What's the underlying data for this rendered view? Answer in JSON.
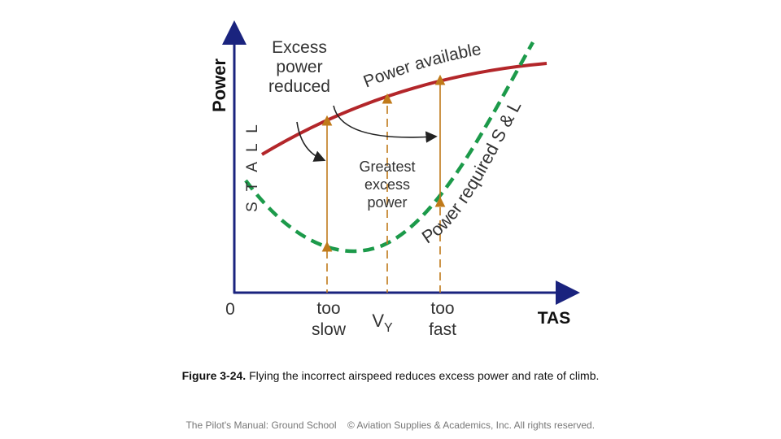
{
  "axes": {
    "y_label": "Power",
    "x_label": "TAS",
    "origin": "0",
    "stall": "S T A L L"
  },
  "curves": {
    "power_available": "Power available",
    "power_required": "Power required S & L"
  },
  "annotations": {
    "excess_reduced": [
      "Excess",
      "power",
      "reduced"
    ],
    "greatest": [
      "Greatest",
      "excess",
      "power"
    ]
  },
  "x_marks": {
    "too_slow": [
      "too",
      "slow"
    ],
    "vy": {
      "v": "V",
      "sub": "Y"
    },
    "too_fast": [
      "too",
      "fast"
    ]
  },
  "caption": {
    "label": "Figure 3-24.",
    "text": " Flying the incorrect airspeed reduces excess power and rate of climb."
  },
  "footer": {
    "left": "The Pilot's Manual: Ground School",
    "right": "© Aviation Supplies & Academics, Inc. All rights reserved."
  }
}
